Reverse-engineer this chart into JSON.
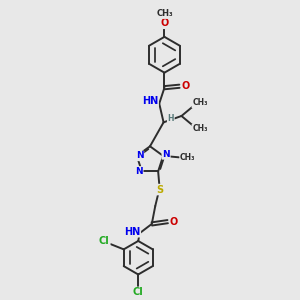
{
  "background_color": "#e8e8e8",
  "fig_size": [
    3.0,
    3.0
  ],
  "dpi": 100,
  "bond_color": "#2d2d2d",
  "N_color": "#0000ee",
  "O_color": "#cc0000",
  "S_color": "#bbaa00",
  "Cl_color": "#22aa22",
  "H_color": "#557777",
  "line_width": 1.4,
  "font_size": 7.0,
  "xlim": [
    0,
    10
  ],
  "ylim": [
    0,
    10
  ]
}
